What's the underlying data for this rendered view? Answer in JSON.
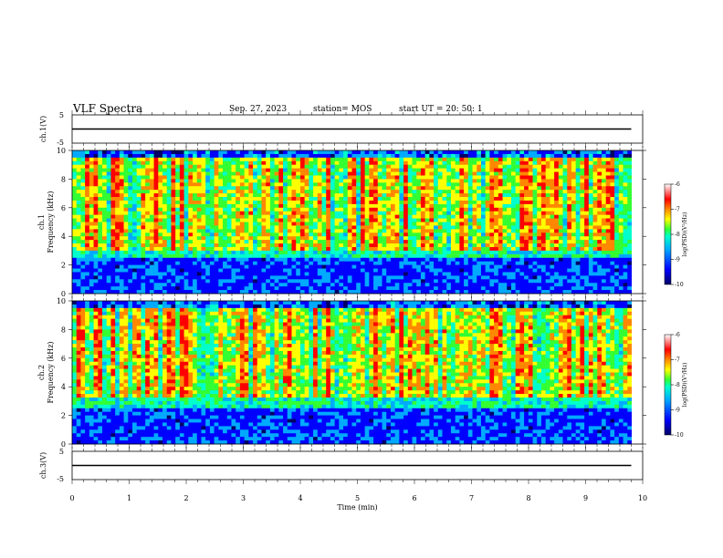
{
  "header": {
    "title": "VLF Spectra",
    "date": "Sep. 27, 2023",
    "station": "station= MOS",
    "start": "start  UT =   20: 50: 1"
  },
  "chart_data": [
    {
      "type": "line",
      "ylabel": "ch.1(V)",
      "yticks": [
        "5",
        "-5"
      ],
      "ylim": [
        -5,
        5
      ],
      "xlim": [
        0,
        10
      ],
      "series": [
        {
          "x": [
            0,
            9.8
          ],
          "y": [
            0,
            0
          ]
        }
      ]
    },
    {
      "type": "heatmap",
      "ylabel": "ch.1\nFrequency (kHz)",
      "ylim": [
        0,
        10
      ],
      "yticks": [
        "0",
        "2",
        "4",
        "6",
        "8",
        "10"
      ],
      "xlim": [
        0,
        10
      ],
      "colorbar": {
        "label": "log(PSD)(V²/Hz)",
        "range": [
          -10,
          -6
        ],
        "ticks": [
          "-6",
          "-7",
          "-8",
          "-9",
          "-10"
        ]
      }
    },
    {
      "type": "heatmap",
      "ylabel": "ch.2\nFrequency (kHz)",
      "ylim": [
        0,
        10
      ],
      "yticks": [
        "0",
        "2",
        "4",
        "6",
        "8",
        "10"
      ],
      "xlim": [
        0,
        10
      ],
      "colorbar": {
        "label": "log(PSD)(V²/Hz)",
        "range": [
          -10,
          -6
        ],
        "ticks": [
          "-6",
          "-7",
          "-8",
          "-9",
          "-10"
        ]
      }
    },
    {
      "type": "line",
      "ylabel": "ch.3(V)",
      "yticks": [
        "5",
        "-5"
      ],
      "ylim": [
        -5,
        5
      ],
      "xlim": [
        0,
        10
      ],
      "xlabel": "Time (min)",
      "xticks": [
        "0",
        "1",
        "2",
        "3",
        "4",
        "5",
        "6",
        "7",
        "8",
        "9",
        "10"
      ],
      "series": [
        {
          "x": [
            0,
            9.8
          ],
          "y": [
            0,
            0
          ]
        }
      ]
    }
  ],
  "colors": {
    "colormap": [
      "#000066",
      "#0000ff",
      "#00aaff",
      "#00ffcc",
      "#33ff33",
      "#ffff00",
      "#ff8800",
      "#ff0000",
      "#ffffff"
    ]
  }
}
